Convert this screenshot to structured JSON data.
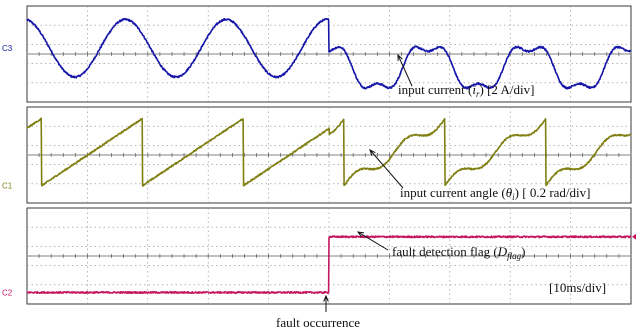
{
  "window": {
    "background": "#ffffff",
    "grid_color": "#8a8a8a"
  },
  "channels": [
    {
      "id": "C3",
      "label": "C3",
      "color": "#1515a8"
    },
    {
      "id": "C1",
      "label": "C1",
      "color": "#7f7f12"
    },
    {
      "id": "C2",
      "label": "C2",
      "color": "#c4175f"
    }
  ],
  "annotations": {
    "input_current": {
      "prefix": "input current (",
      "symbol": "i",
      "subscript": "r",
      "suffix": ") [2 A/div]"
    },
    "current_angle": {
      "prefix": "input current angle (",
      "symbol": "θ",
      "subscript": "i",
      "suffix": ") [ 0.2 rad/div]"
    },
    "fault_flag": {
      "prefix": "fault detection flag (",
      "symbol": "D",
      "subscript": "flag",
      "suffix": ")"
    },
    "timebase": "[10ms/div]",
    "fault_occurrence": "fault occurrence"
  },
  "chart_data": {
    "type": "line",
    "title": "",
    "x_unit": "ms",
    "x_range": [
      0,
      100
    ],
    "time_per_div_ms": 10,
    "fault_time_ms": 50,
    "grid": true,
    "panels": [
      {
        "name": "input current (ir)",
        "channel": "C3",
        "scale": "2 A/div",
        "waveform": "sinusoid",
        "pre_fault": {
          "period_ms": 16.7,
          "amplitude_div": 1.5,
          "offset_div": 0.3
        },
        "post_fault": {
          "period_ms": 16.7,
          "amplitude_div": 1.5,
          "offset_div": -0.7,
          "distortion": "flattened peaks"
        },
        "ylim_div": [
          -2.3,
          2.3
        ]
      },
      {
        "name": "input current angle (θi)",
        "channel": "C1",
        "scale": "0.2 rad/div",
        "waveform": "sawtooth",
        "period_ms": 16.7,
        "range_div": [
          -1.6,
          1.9
        ],
        "post_fault_shape": "stepped / bowed ramp",
        "ylim_div": [
          -2.3,
          2.3
        ]
      },
      {
        "name": "fault detection flag (Dflag)",
        "channel": "C2",
        "waveform": "step",
        "values": [
          {
            "t_ms": 0,
            "level": 0
          },
          {
            "t_ms": 50,
            "level": 1
          }
        ],
        "ylim_div": [
          -2.3,
          2.3
        ]
      }
    ]
  }
}
